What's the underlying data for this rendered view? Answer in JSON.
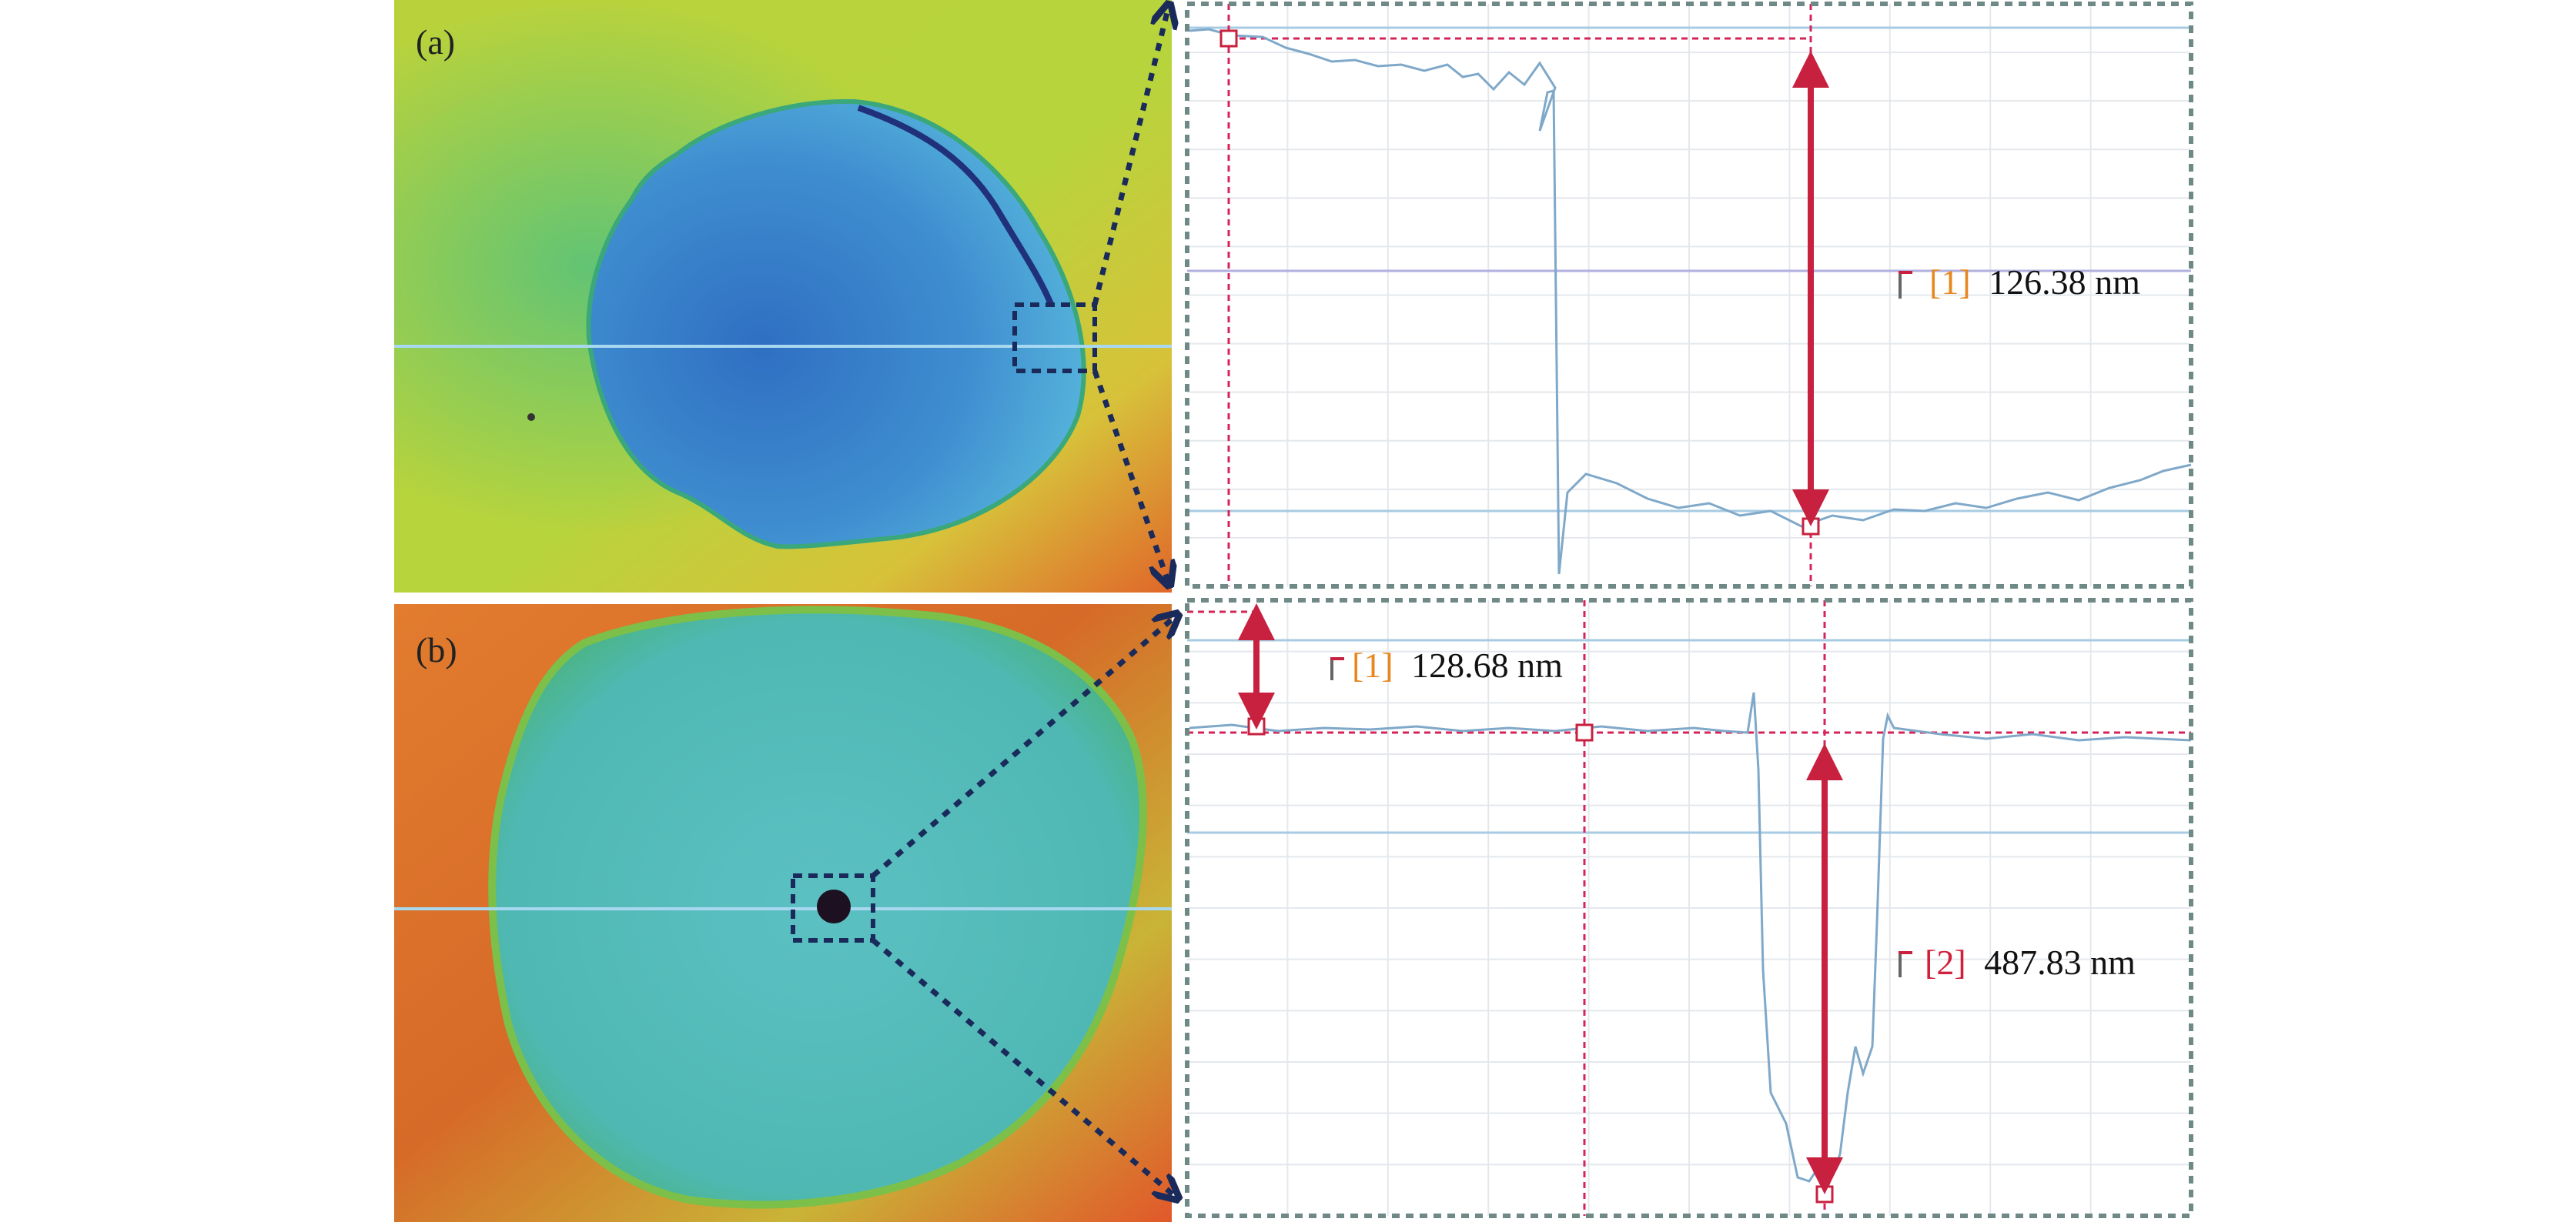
{
  "figure": {
    "panels": [
      {
        "label": "(a)",
        "measurement": {
          "index": "[1]",
          "index_color": "#e8871e",
          "value": "126.38 nm"
        }
      },
      {
        "label": "(b)",
        "measurements": [
          {
            "index": "[1]",
            "index_color": "#e8871e",
            "value": "128.68 nm"
          },
          {
            "index": "[2]",
            "index_color": "#d0203a",
            "value": "487.83 nm"
          }
        ]
      }
    ],
    "colors": {
      "profile_line": "#7fa8c9",
      "cursor_line": "#d4245a",
      "arrow": "#c8203f",
      "inset_box": "#1a2a5a",
      "chart_border": "#6f8a86"
    }
  }
}
